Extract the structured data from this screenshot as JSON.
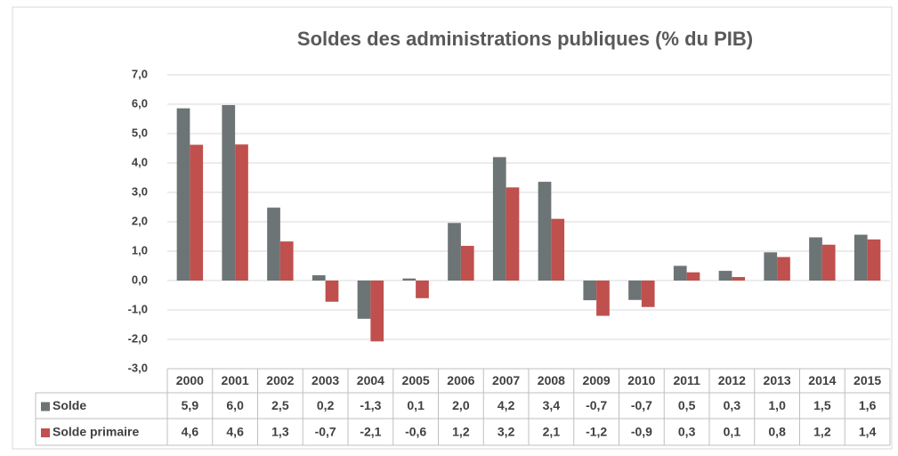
{
  "chart_data": {
    "type": "bar",
    "title": "Soldes des administrations publiques (% du PIB)",
    "categories": [
      "2000",
      "2001",
      "2002",
      "2003",
      "2004",
      "2005",
      "2006",
      "2007",
      "2008",
      "2009",
      "2010",
      "2011",
      "2012",
      "2013",
      "2014",
      "2015"
    ],
    "series": [
      {
        "name": "Solde",
        "color": "#6d7475",
        "values": [
          5.86,
          5.97,
          2.48,
          0.18,
          -1.3,
          0.07,
          1.96,
          4.2,
          3.36,
          -0.67,
          -0.66,
          0.5,
          0.33,
          0.96,
          1.47,
          1.56
        ],
        "value_labels": [
          "5,9",
          "6,0",
          "2,5",
          "0,2",
          "-1,3",
          "0,1",
          "2,0",
          "4,2",
          "3,4",
          "-0,7",
          "-0,7",
          "0,5",
          "0,3",
          "1,0",
          "1,5",
          "1,6"
        ]
      },
      {
        "name": "Solde primaire",
        "color": "#c0504d",
        "values": [
          4.62,
          4.63,
          1.33,
          -0.72,
          -2.07,
          -0.6,
          1.18,
          3.17,
          2.1,
          -1.2,
          -0.9,
          0.28,
          0.12,
          0.8,
          1.22,
          1.4
        ],
        "value_labels": [
          "4,6",
          "4,6",
          "1,3",
          "-0,7",
          "-2,1",
          "-0,6",
          "1,2",
          "3,2",
          "2,1",
          "-1,2",
          "-0,9",
          "0,3",
          "0,1",
          "0,8",
          "1,2",
          "1,4"
        ]
      }
    ],
    "ylim": [
      -3,
      7
    ],
    "yticks": [
      {
        "value": -3,
        "label": "-3,0"
      },
      {
        "value": -2,
        "label": "-2,0"
      },
      {
        "value": -1,
        "label": "-1,0"
      },
      {
        "value": 0,
        "label": "0,0"
      },
      {
        "value": 1,
        "label": "1,0"
      },
      {
        "value": 2,
        "label": "2,0"
      },
      {
        "value": 3,
        "label": "3,0"
      },
      {
        "value": 4,
        "label": "4,0"
      },
      {
        "value": 5,
        "label": "5,0"
      },
      {
        "value": 6,
        "label": "6,0"
      },
      {
        "value": 7,
        "label": "7,0"
      }
    ],
    "grid": true
  }
}
